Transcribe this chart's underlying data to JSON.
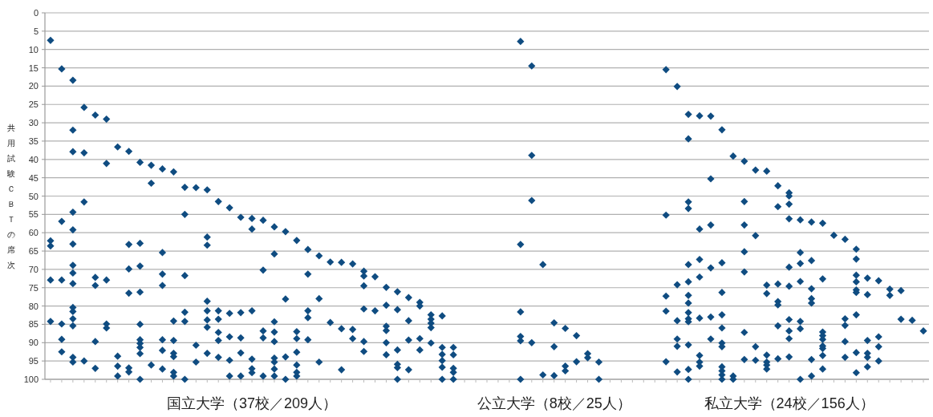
{
  "chart_data": {
    "type": "scatter",
    "ylabel": "共用試験ＣＢＴの席次",
    "marker": "diamond",
    "grid": "y",
    "ylim": [
      100,
      0
    ],
    "yticks": [
      0,
      5,
      10,
      15,
      20,
      25,
      30,
      35,
      40,
      45,
      50,
      55,
      60,
      65,
      70,
      75,
      80,
      85,
      90,
      95,
      100
    ],
    "categories": [
      null,
      null,
      null,
      null,
      null,
      null,
      null,
      null,
      null,
      null,
      null,
      null,
      null,
      null,
      null,
      null,
      null,
      null,
      "国立大学（37校／209人）",
      null,
      null,
      null,
      null,
      null,
      null,
      null,
      null,
      null,
      null,
      null,
      null,
      null,
      null,
      null,
      null,
      null,
      null,
      null,
      null,
      null,
      null,
      null,
      null,
      null,
      null,
      "公立大学（8校／25人）",
      null,
      null,
      null,
      null,
      null,
      null,
      null,
      null,
      null,
      null,
      null,
      null,
      null,
      null,
      null,
      null,
      null,
      null,
      null,
      null,
      "私立大学（24校／156人）",
      null,
      null,
      null,
      null,
      null,
      null,
      null,
      null,
      null,
      null,
      null,
      null
    ],
    "series": [
      {
        "color": "#0f4c81",
        "values": [
          7.5,
          15.3,
          18.4,
          25.8,
          27.9,
          29.0,
          36.6,
          37.8,
          40.8,
          41.6,
          42.6,
          43.4,
          47.6,
          47.7,
          48.3,
          51.5,
          53.2,
          55.8,
          56.1,
          56.6,
          58.4,
          59.7,
          62.1,
          64.6,
          66.3,
          68.0,
          68.1,
          68.5,
          70.5,
          72.0,
          74.9,
          76.1,
          77.7,
          79.0,
          82.4,
          82.7,
          91.3,
          null,
          null,
          null,
          null,
          null,
          7.8,
          14.5,
          68.7,
          84.6,
          86.1,
          88.1,
          93.0,
          95.3,
          null,
          null,
          null,
          null,
          null,
          15.5,
          20.1,
          27.7,
          28.1,
          28.2,
          31.9,
          39.1,
          40.5,
          42.9,
          43.2,
          47.2,
          49.1,
          56.5,
          57.1,
          57.4,
          60.7,
          61.8,
          64.5,
          72.4,
          73.1,
          75.4,
          75.8,
          83.9,
          86.8
        ]
      },
      {
        "color": "#0f4c81",
        "values": [
          62.2,
          56.9,
          32.0,
          38.2,
          72.2,
          41.1,
          93.7,
          63.2,
          62.9,
          46.5,
          65.4,
          84.1,
          55.0,
          90.7,
          61.2,
          81.3,
          82.0,
          81.8,
          59.0,
          70.2,
          65.8,
          78.1,
          87.0,
          71.3,
          78.0,
          84.5,
          86.2,
          86.4,
          71.8,
          81.3,
          79.8,
          81.0,
          84.0,
          80.0,
          83.6,
          91.3,
          93.3,
          null,
          null,
          null,
          null,
          null,
          63.2,
          38.9,
          98.8,
          91.1,
          96.4,
          95.2,
          94.1,
          100,
          null,
          null,
          null,
          null,
          null,
          55.2,
          74.2,
          34.4,
          59.0,
          45.3,
          68.2,
          99.1,
          51.5,
          60.8,
          74.3,
          52.9,
          50.0,
          65.4,
          67.6,
          72.6,
          null,
          83.5,
          67.2,
          76.9,
          88.4,
          77.1,
          83.6,
          null,
          null
        ]
      },
      {
        "color": "#0f4c81",
        "values": [
          63.6,
          72.9,
          37.9,
          51.6,
          74.4,
          72.9,
          96.4,
          69.9,
          69.1,
          96.1,
          71.3,
          89.4,
          71.7,
          95.3,
          63.4,
          83.6,
          88.4,
          88.7,
          81.3,
          86.8,
          84.3,
          93.9,
          88.9,
          81.3,
          95.3,
          null,
          97.4,
          88.9,
          74.5,
          null,
          85.5,
          92.0,
          89.3,
          88.9,
          84.7,
          93.2,
          97.0,
          null,
          null,
          null,
          null,
          null,
          81.6,
          51.2,
          null,
          99.0,
          97.7,
          null,
          null,
          null,
          null,
          null,
          null,
          null,
          null,
          77.3,
          84.0,
          51.6,
          67.3,
          57.9,
          76.3,
          100,
          57.9,
          91.1,
          76.6,
          74.0,
          52.2,
          68.4,
          75.3,
          87.1,
          null,
          85.3,
          71.6,
          89.4,
          91.1,
          null,
          null,
          null,
          null
        ]
      },
      {
        "color": "#0f4c81",
        "values": [
          72.9,
          84.9,
          54.4,
          95.0,
          89.7,
          84.9,
          99.1,
          76.5,
          76.2,
          null,
          74.4,
          92.9,
          81.7,
          null,
          78.7,
          87.2,
          94.8,
          92.8,
          94.5,
          88.7,
          87.1,
          100,
          92.6,
          83.2,
          null,
          null,
          null,
          null,
          80.8,
          null,
          86.7,
          95.9,
          97.4,
          92.0,
          85.9,
          94.9,
          98.1,
          null,
          null,
          null,
          null,
          null,
          88.3,
          90.0,
          null,
          null,
          null,
          null,
          null,
          null,
          null,
          null,
          null,
          null,
          null,
          81.4,
          89.0,
          53.4,
          72.1,
          69.6,
          82.4,
          null,
          65.2,
          94.8,
          93.4,
          78.8,
          56.2,
          73.3,
          78.0,
          88.1,
          null,
          89.7,
          73.4,
          92.9,
          95.0,
          null,
          null,
          null,
          null
        ]
      },
      {
        "color": "#0f4c81",
        "values": [
          84.2,
          89.1,
          59.2,
          null,
          97.0,
          86.0,
          null,
          96.9,
          85.0,
          null,
          89.2,
          93.8,
          84.2,
          null,
          81.3,
          89.4,
          99.1,
          99.1,
          97.1,
          99.1,
          89.7,
          null,
          96.1,
          89.2,
          null,
          null,
          null,
          null,
          89.7,
          null,
          90.0,
          96.8,
          null,
          null,
          90.1,
          96.7,
          100,
          null,
          null,
          null,
          null,
          null,
          89.5,
          null,
          null,
          null,
          null,
          null,
          null,
          null,
          null,
          null,
          null,
          null,
          null,
          95.2,
          91.0,
          68.7,
          83.3,
          83.0,
          86.0,
          null,
          70.7,
          null,
          95.3,
          79.7,
          69.4,
          84.2,
          79.2,
          89.1,
          null,
          94.0,
          75.6,
          94.0,
          null,
          null,
          null,
          null,
          null
        ]
      },
      {
        "color": "#0f4c81",
        "values": [
          null,
          92.5,
          63.1,
          null,
          null,
          null,
          null,
          98.0,
          89.2,
          null,
          92.1,
          98.1,
          100,
          null,
          83.8,
          94.0,
          null,
          null,
          98.2,
          null,
          94.2,
          null,
          98.1,
          null,
          null,
          null,
          null,
          null,
          92.4,
          null,
          93.3,
          100,
          null,
          null,
          null,
          100,
          null,
          null,
          null,
          null,
          null,
          null,
          100,
          null,
          null,
          null,
          null,
          null,
          null,
          null,
          null,
          null,
          null,
          null,
          null,
          null,
          98.0,
          73.4,
          93.5,
          89.0,
          90.1,
          null,
          87.2,
          null,
          96.1,
          85.4,
          74.6,
          86.2,
          94.6,
          90.9,
          null,
          null,
          76.3,
          96.6,
          null,
          null,
          null,
          null,
          null
        ]
      },
      {
        "color": "#0f4c81",
        "values": [
          null,
          null,
          68.9,
          null,
          null,
          null,
          null,
          null,
          90.2,
          null,
          97.2,
          null,
          null,
          null,
          85.8,
          null,
          null,
          null,
          null,
          null,
          95.3,
          null,
          99.1,
          null,
          null,
          null,
          null,
          null,
          null,
          null,
          null,
          null,
          null,
          null,
          null,
          null,
          null,
          null,
          null,
          null,
          null,
          null,
          null,
          null,
          null,
          null,
          null,
          null,
          null,
          null,
          null,
          null,
          null,
          null,
          null,
          null,
          null,
          77.1,
          95.3,
          null,
          91.1,
          null,
          94.6,
          null,
          97.2,
          94.4,
          83.7,
          100,
          99.1,
          91.6,
          null,
          null,
          82.4,
          null,
          null,
          null,
          null,
          null,
          null
        ]
      },
      {
        "color": "#0f4c81",
        "values": [
          null,
          null,
          71.0,
          null,
          null,
          null,
          null,
          null,
          91.3,
          null,
          null,
          99.1,
          null,
          null,
          92.9,
          null,
          null,
          null,
          null,
          null,
          97.2,
          null,
          null,
          null,
          null,
          null,
          null,
          null,
          null,
          null,
          null,
          null,
          null,
          null,
          null,
          null,
          null,
          null,
          null,
          null,
          null,
          null,
          null,
          null,
          null,
          null,
          null,
          null,
          null,
          null,
          null,
          null,
          null,
          null,
          null,
          null,
          null,
          79.2,
          96.4,
          null,
          96.6,
          null,
          null,
          null,
          null,
          null,
          86.8,
          null,
          null,
          93.5,
          null,
          null,
          92.7,
          null,
          null,
          null,
          null,
          null,
          null
        ]
      },
      {
        "color": "#0f4c81",
        "values": [
          null,
          null,
          73.9,
          null,
          null,
          null,
          null,
          null,
          93.0,
          null,
          null,
          null,
          null,
          null,
          null,
          null,
          null,
          null,
          null,
          null,
          99.1,
          null,
          null,
          null,
          null,
          null,
          null,
          null,
          null,
          null,
          null,
          null,
          null,
          null,
          null,
          null,
          null,
          null,
          null,
          null,
          null,
          null,
          null,
          null,
          null,
          null,
          null,
          null,
          null,
          null,
          null,
          null,
          null,
          null,
          null,
          null,
          null,
          81.8,
          null,
          null,
          97.7,
          null,
          null,
          null,
          null,
          null,
          88.9,
          null,
          null,
          97.2,
          null,
          null,
          98.2,
          null,
          null,
          null,
          null,
          null,
          null
        ]
      },
      {
        "color": "#0f4c81",
        "values": [
          null,
          null,
          80.4,
          null,
          null,
          null,
          null,
          null,
          100,
          null,
          null,
          null,
          null,
          null,
          null,
          null,
          null,
          null,
          null,
          null,
          null,
          null,
          null,
          null,
          null,
          null,
          null,
          null,
          null,
          null,
          null,
          null,
          null,
          null,
          null,
          null,
          null,
          null,
          null,
          null,
          null,
          null,
          null,
          null,
          null,
          null,
          null,
          null,
          null,
          null,
          null,
          null,
          null,
          null,
          null,
          null,
          null,
          null,
          null,
          null,
          98.8,
          null,
          null,
          null,
          null,
          null,
          93.9,
          null,
          null,
          null,
          null,
          null,
          null,
          null,
          null,
          null,
          null,
          null,
          null
        ]
      },
      {
        "color": "#0f4c81",
        "values": [
          null,
          null,
          81.5,
          null,
          null,
          null,
          null,
          null,
          null,
          null,
          null,
          null,
          null,
          null,
          null,
          null,
          null,
          null,
          null,
          null,
          null,
          null,
          null,
          null,
          null,
          null,
          null,
          null,
          null,
          null,
          null,
          null,
          null,
          null,
          null,
          null,
          null,
          null,
          null,
          null,
          null,
          null,
          null,
          null,
          null,
          null,
          null,
          null,
          null,
          null,
          null,
          null,
          null,
          null,
          null,
          null,
          null,
          83.5,
          null,
          null,
          100,
          null,
          null,
          null,
          null,
          null,
          null,
          null,
          null,
          null,
          null,
          null,
          null,
          null,
          null,
          null,
          null,
          null,
          null
        ]
      },
      {
        "color": "#0f4c81",
        "values": [
          null,
          null,
          83.5,
          null,
          null,
          null,
          null,
          null,
          null,
          null,
          null,
          null,
          null,
          null,
          null,
          null,
          null,
          null,
          null,
          null,
          null,
          null,
          null,
          null,
          null,
          null,
          null,
          null,
          null,
          null,
          null,
          null,
          null,
          null,
          null,
          null,
          null,
          null,
          null,
          null,
          null,
          null,
          null,
          null,
          null,
          null,
          null,
          null,
          null,
          null,
          null,
          null,
          null,
          null,
          null,
          null,
          null,
          84.3,
          null,
          null,
          null,
          null,
          null,
          null,
          null,
          null,
          null,
          null,
          null,
          null,
          null,
          null,
          null,
          null,
          null,
          null,
          null,
          null,
          null
        ]
      },
      {
        "color": "#0f4c81",
        "values": [
          null,
          null,
          85.4,
          null,
          null,
          null,
          null,
          null,
          null,
          null,
          null,
          null,
          null,
          null,
          null,
          null,
          null,
          null,
          null,
          null,
          null,
          null,
          null,
          null,
          null,
          null,
          null,
          null,
          null,
          null,
          null,
          null,
          null,
          null,
          null,
          null,
          null,
          null,
          null,
          null,
          null,
          null,
          null,
          null,
          null,
          null,
          null,
          null,
          null,
          null,
          null,
          null,
          null,
          null,
          null,
          null,
          null,
          90.6,
          null,
          null,
          null,
          null,
          null,
          null,
          null,
          null,
          null,
          null,
          null,
          null,
          null,
          null,
          null,
          null,
          null,
          null,
          null,
          null,
          null
        ]
      },
      {
        "color": "#0f4c81",
        "values": [
          null,
          null,
          94.0,
          null,
          null,
          null,
          null,
          null,
          null,
          null,
          null,
          null,
          null,
          null,
          null,
          null,
          null,
          null,
          null,
          null,
          null,
          null,
          null,
          null,
          null,
          null,
          null,
          null,
          null,
          null,
          null,
          null,
          null,
          null,
          null,
          null,
          null,
          null,
          null,
          null,
          null,
          null,
          null,
          null,
          null,
          null,
          null,
          null,
          null,
          null,
          null,
          null,
          null,
          null,
          null,
          null,
          null,
          97.3,
          null,
          null,
          null,
          null,
          null,
          null,
          null,
          null,
          null,
          null,
          null,
          null,
          null,
          null,
          null,
          null,
          null,
          null,
          null,
          null,
          null
        ]
      },
      {
        "color": "#0f4c81",
        "values": [
          null,
          null,
          95.3,
          null,
          null,
          null,
          null,
          null,
          null,
          null,
          null,
          null,
          null,
          null,
          null,
          null,
          null,
          null,
          null,
          null,
          null,
          null,
          null,
          null,
          null,
          null,
          null,
          null,
          null,
          null,
          null,
          null,
          null,
          null,
          null,
          null,
          null,
          null,
          null,
          null,
          null,
          null,
          null,
          null,
          null,
          null,
          null,
          null,
          null,
          null,
          null,
          null,
          null,
          null,
          null,
          null,
          null,
          100,
          null,
          null,
          null,
          null,
          null,
          null,
          null,
          null,
          null,
          null,
          null,
          null,
          null,
          null,
          null,
          null,
          null,
          null,
          null,
          null,
          null
        ]
      }
    ]
  }
}
